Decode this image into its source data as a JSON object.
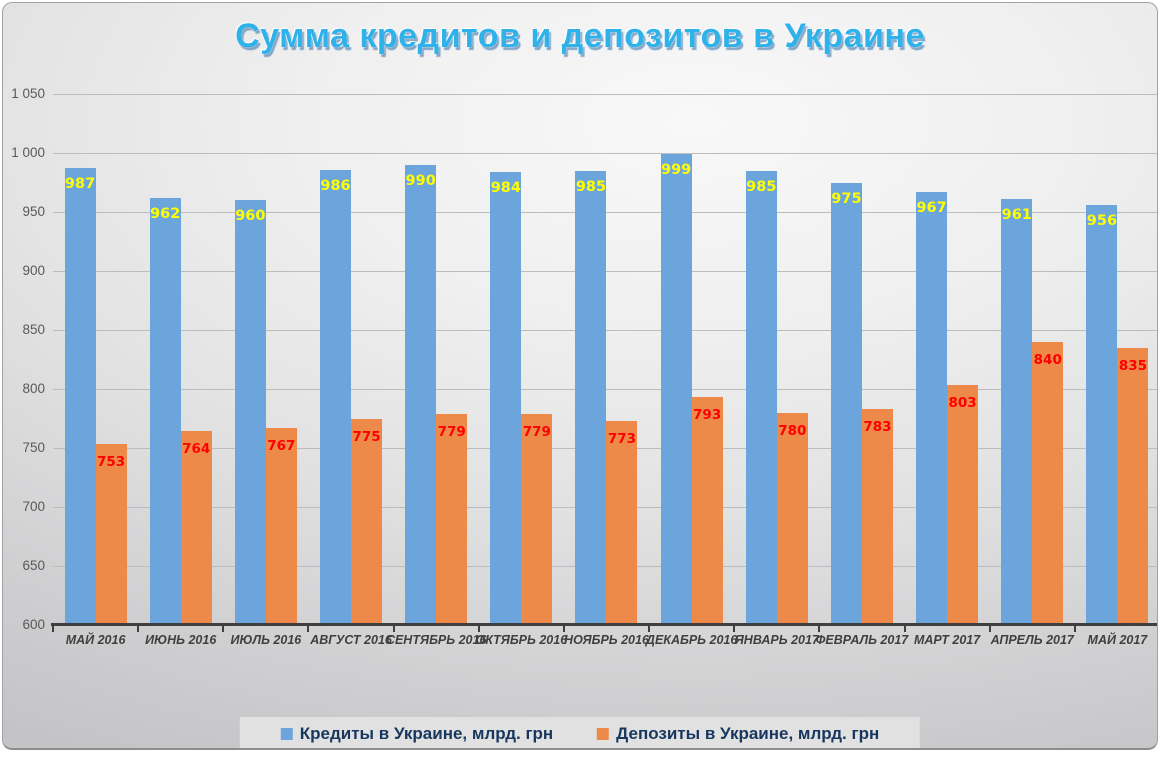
{
  "title": "Сумма кредитов и депозитов в Украине",
  "colors": {
    "title_text": "#2fb2e9",
    "credit_bar": "#6ca5db",
    "deposit_bar": "#ee8a49",
    "credit_value_label": "#ffff00",
    "deposit_value_label": "#ff0000",
    "axis_text": "#595959",
    "category_text": "#3f3f3f",
    "legend_text": "#17375e",
    "gridline": "#bcbcbe",
    "axis_line": "#3f3f3f",
    "legend_background": "#e1e1e1"
  },
  "chart_data": {
    "type": "bar",
    "title": "Сумма кредитов и депозитов в Украине",
    "categories": [
      "МАЙ 2016",
      "ИЮНЬ 2016",
      "ИЮЛЬ 2016",
      "АВГУСТ 2016",
      "СЕНТЯБРЬ 2016",
      "ОКТЯБРЬ 2016",
      "НОЯБРЬ 2016",
      "ДЕКАБРЬ 2016",
      "ЯНВАРЬ 2017",
      "ФЕВРАЛЬ 2017",
      "МАРТ 2017",
      "АПРЕЛЬ 2017",
      "МАЙ 2017"
    ],
    "series": [
      {
        "name": "Кредиты в Украине, млрд. грн",
        "values": [
          987,
          962,
          960,
          986,
          990,
          984,
          985,
          999,
          985,
          975,
          967,
          961,
          956
        ]
      },
      {
        "name": "Депозиты в Украине, млрд. грн",
        "values": [
          753,
          764,
          767,
          775,
          779,
          779,
          773,
          793,
          780,
          783,
          803,
          840,
          835
        ]
      }
    ],
    "xlabel": "",
    "ylabel": "",
    "ylim": [
      600,
      1050
    ],
    "ytick_step": 50,
    "ytick_labels": [
      "600",
      "650",
      "700",
      "750",
      "800",
      "850",
      "900",
      "950",
      "1 000",
      "1 050"
    ],
    "grid": true,
    "legend_position": "bottom",
    "value_labels": true
  },
  "legend": {
    "items": [
      {
        "label": "Кредиты в Украине, млрд. грн"
      },
      {
        "label": "Депозиты в Украине, млрд. грн"
      }
    ]
  }
}
